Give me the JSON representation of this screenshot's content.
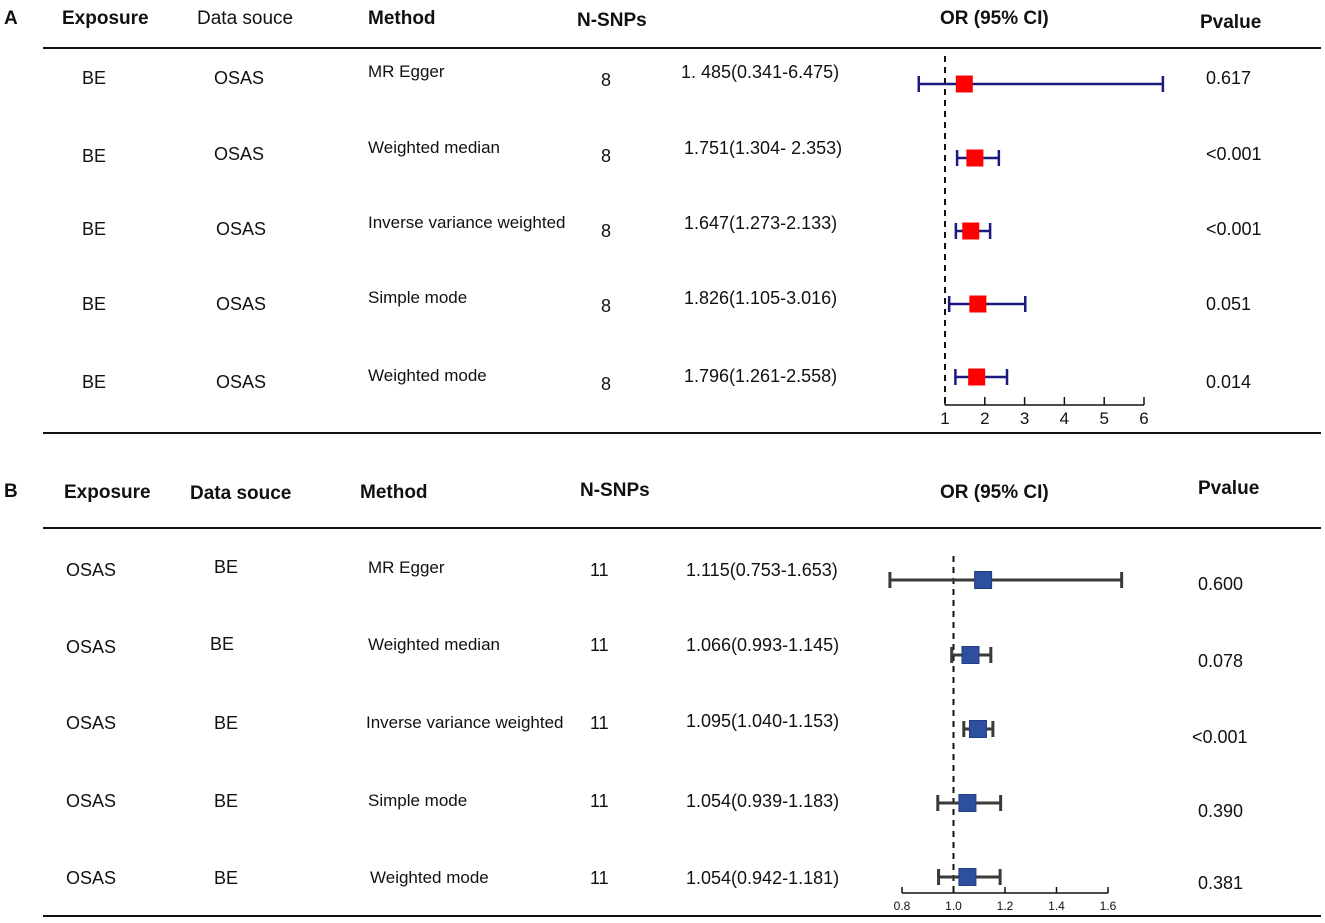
{
  "chart_data": [
    {
      "type": "forest",
      "panel": "A",
      "headers": {
        "exposure": "Exposure",
        "data_source": "Data souce",
        "method": "Method",
        "n_snps": "N-SNPs",
        "or_ci": "OR (95% CI)",
        "pvalue": "Pvalue"
      },
      "rows": [
        {
          "exposure": "BE",
          "data_source": "OSAS",
          "method": "MR Egger",
          "n_snps": "8",
          "or_text": "1. 485(0.341-6.475)",
          "pvalue": "0.617",
          "or": 1.485,
          "lo": 0.341,
          "hi": 6.475
        },
        {
          "exposure": "BE",
          "data_source": "OSAS",
          "method": "Weighted median",
          "n_snps": "8",
          "or_text": "1.751(1.304- 2.353)",
          "pvalue": "<0.001",
          "or": 1.751,
          "lo": 1.304,
          "hi": 2.353
        },
        {
          "exposure": "BE",
          "data_source": "OSAS",
          "method": "Inverse variance weighted",
          "n_snps": "8",
          "or_text": "1.647(1.273-2.133)",
          "pvalue": "<0.001",
          "or": 1.647,
          "lo": 1.273,
          "hi": 2.133
        },
        {
          "exposure": "BE",
          "data_source": "OSAS",
          "method": "Simple mode",
          "n_snps": "8",
          "or_text": "1.826(1.105-3.016)",
          "pvalue": "0.051",
          "or": 1.826,
          "lo": 1.105,
          "hi": 3.016
        },
        {
          "exposure": "BE",
          "data_source": "OSAS",
          "method": "Weighted mode",
          "n_snps": "8",
          "or_text": "1.796(1.261-2.558)",
          "pvalue": "0.014",
          "or": 1.796,
          "lo": 1.261,
          "hi": 2.558
        }
      ],
      "axis": {
        "min": 1,
        "max": 6,
        "ticks": [
          "1",
          "2",
          "3",
          "4",
          "5",
          "6"
        ],
        "reference": 1
      },
      "marker_color": "#ff0000",
      "ci_color": "#1a1a80"
    },
    {
      "type": "forest",
      "panel": "B",
      "headers": {
        "exposure": "Exposure",
        "data_source": "Data souce",
        "method": "Method",
        "n_snps": "N-SNPs",
        "or_ci": "OR (95% CI)",
        "pvalue": "Pvalue"
      },
      "rows": [
        {
          "exposure": "OSAS",
          "data_source": "BE",
          "method": "MR Egger",
          "n_snps": "11",
          "or_text": "1.115(0.753-1.653)",
          "pvalue": "0.600",
          "or": 1.115,
          "lo": 0.753,
          "hi": 1.653
        },
        {
          "exposure": "OSAS",
          "data_source": "BE",
          "method": "Weighted median",
          "n_snps": "11",
          "or_text": "1.066(0.993-1.145)",
          "pvalue": "0.078",
          "or": 1.066,
          "lo": 0.993,
          "hi": 1.145
        },
        {
          "exposure": "OSAS",
          "data_source": "BE",
          "method": "Inverse variance weighted",
          "n_snps": "11",
          "or_text": "1.095(1.040-1.153)",
          "pvalue": "<0.001",
          "or": 1.095,
          "lo": 1.04,
          "hi": 1.153
        },
        {
          "exposure": "OSAS",
          "data_source": "BE",
          "method": "Simple mode",
          "n_snps": "11",
          "or_text": "1.054(0.939-1.183)",
          "pvalue": "0.390",
          "or": 1.054,
          "lo": 0.939,
          "hi": 1.183
        },
        {
          "exposure": "OSAS",
          "data_source": "BE",
          "method": "Weighted mode",
          "n_snps": "11",
          "or_text": "1.054(0.942-1.181)",
          "pvalue": "0.381",
          "or": 1.054,
          "lo": 0.942,
          "hi": 1.181
        }
      ],
      "axis": {
        "min": 0.8,
        "max": 1.6,
        "ticks": [
          "0.8",
          "1.0",
          "1.2",
          "1.4",
          "1.6"
        ],
        "reference": 1.0
      },
      "marker_color": "#2e4f9e",
      "ci_color": "#3a3a3a"
    }
  ]
}
